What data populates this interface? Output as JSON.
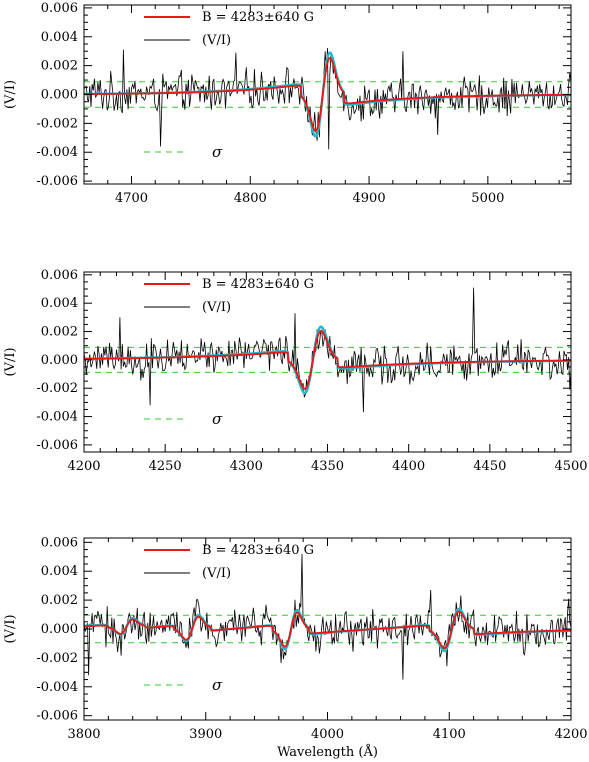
{
  "chart_data": [
    {
      "type": "line",
      "panel": "top",
      "xlabel": "",
      "ylabel": "(V/I)",
      "xlim": [
        4660,
        5070
      ],
      "ylim": [
        -0.0062,
        0.0062
      ],
      "xticks": [
        4700,
        4800,
        4900,
        5000
      ],
      "xtick_labels": [
        "4700",
        "4800",
        "4900",
        "5000"
      ],
      "yticks": [
        -0.006,
        -0.004,
        -0.002,
        0.0,
        0.002,
        0.004,
        0.006
      ],
      "ytick_labels": [
        "-0.006",
        "-0.004",
        "-0.002",
        "0.000",
        "0.002",
        "0.004",
        "0.006"
      ],
      "sigma": 0.00088,
      "line_center": 4861,
      "line_amp": 0.0026,
      "line_width": 6,
      "noise_amp": 0.0011,
      "spikes": [
        [
          4693,
          0.0031
        ],
        [
          4724,
          -0.0036
        ],
        [
          4788,
          0.0029
        ],
        [
          4866,
          -0.0038
        ],
        [
          4928,
          0.003
        ],
        [
          4958,
          -0.0028
        ]
      ],
      "legend": {
        "model": "B = 4283±640 G",
        "observed": "(V/I)",
        "sigma": "σ"
      },
      "series": [
        {
          "name": "B = 4283±640 G",
          "color": "#e41a1c",
          "role": "model"
        },
        {
          "name": "(V/I)",
          "color": "#000000",
          "role": "observed"
        },
        {
          "name": "σ",
          "color": "#33cc33",
          "role": "sigma"
        }
      ],
      "uncertainty_color": "#22b8c8"
    },
    {
      "type": "line",
      "panel": "middle",
      "xlabel": "",
      "ylabel": "(V/I)",
      "xlim": [
        4200,
        4500
      ],
      "ylim": [
        -0.0065,
        0.0062
      ],
      "xticks": [
        4200,
        4250,
        4300,
        4350,
        4400,
        4450,
        4500
      ],
      "xtick_labels": [
        "4200",
        "4250",
        "4300",
        "4350",
        "4400",
        "4450",
        "4500"
      ],
      "yticks": [
        -0.006,
        -0.004,
        -0.002,
        0.0,
        0.002,
        0.004,
        0.006
      ],
      "ytick_labels": [
        "-0.006",
        "-0.004",
        "-0.002",
        "0.000",
        "0.002",
        "0.004",
        "0.006"
      ],
      "sigma": 0.00088,
      "line_center": 4341,
      "line_amp": 0.0021,
      "line_width": 5,
      "noise_amp": 0.0011,
      "spikes": [
        [
          4222,
          0.003
        ],
        [
          4241,
          -0.0032
        ],
        [
          4330,
          0.0033
        ],
        [
          4372,
          -0.0037
        ],
        [
          4440,
          0.0051
        ],
        [
          4499,
          -0.0021
        ]
      ],
      "legend": {
        "model": "B = 4283±640 G",
        "observed": "(V/I)",
        "sigma": "σ"
      },
      "series": [
        {
          "name": "B = 4283±640 G",
          "color": "#e41a1c",
          "role": "model"
        },
        {
          "name": "(V/I)",
          "color": "#000000",
          "role": "observed"
        },
        {
          "name": "σ",
          "color": "#33cc33",
          "role": "sigma"
        }
      ],
      "uncertainty_color": "#22b8c8"
    },
    {
      "type": "line",
      "panel": "bottom",
      "xlabel": "Wavelength (Å)",
      "ylabel": "(V/I)",
      "xlim": [
        3800,
        4200
      ],
      "ylim": [
        -0.0063,
        0.0063
      ],
      "xticks": [
        3800,
        3900,
        4000,
        4100,
        4200
      ],
      "xtick_labels": [
        "3800",
        "3900",
        "4000",
        "4100",
        "4200"
      ],
      "yticks": [
        -0.006,
        -0.004,
        -0.002,
        0.0,
        0.002,
        0.004,
        0.006
      ],
      "ytick_labels": [
        "-0.006",
        "-0.004",
        "-0.002",
        "0.000",
        "0.002",
        "0.004",
        "0.006"
      ],
      "sigma": 0.00095,
      "lines": [
        [
          3835,
          0.0005,
          5
        ],
        [
          3889,
          0.0008,
          5
        ],
        [
          3970,
          0.0012,
          5
        ],
        [
          4102,
          0.0013,
          6
        ]
      ],
      "noise_amp": 0.0011,
      "spikes": [
        [
          3804,
          -0.0032
        ],
        [
          3979,
          0.0052
        ],
        [
          4062,
          -0.0035
        ],
        [
          4085,
          0.0027
        ],
        [
          4198,
          0.0021
        ]
      ],
      "legend": {
        "model": "B = 4283±640 G",
        "observed": "(V/I)",
        "sigma": "σ"
      },
      "series": [
        {
          "name": "B = 4283±640 G",
          "color": "#e41a1c",
          "role": "model"
        },
        {
          "name": "(V/I)",
          "color": "#000000",
          "role": "observed"
        },
        {
          "name": "σ",
          "color": "#33cc33",
          "role": "sigma"
        }
      ],
      "uncertainty_color": "#22b8c8"
    }
  ]
}
